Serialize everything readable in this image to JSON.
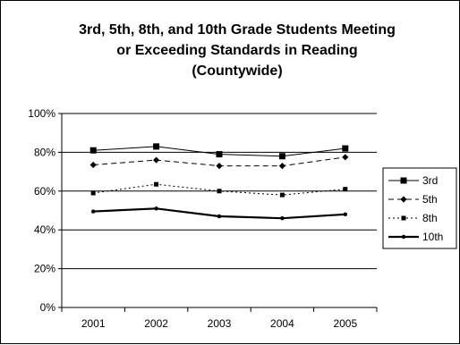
{
  "chart_data": {
    "type": "line",
    "title_lines": [
      "3rd, 5th, 8th, and 10th Grade Students Meeting",
      "or Exceeding Standards in Reading",
      "(Countywide)"
    ],
    "xlabel": "",
    "ylabel": "",
    "categories": [
      "2001",
      "2002",
      "2003",
      "2004",
      "2005"
    ],
    "y_ticks": [
      "0%",
      "20%",
      "40%",
      "60%",
      "80%",
      "100%"
    ],
    "ylim": [
      0,
      100
    ],
    "grid": true,
    "legend_position": "right",
    "series": [
      {
        "name": "3rd",
        "values": [
          81,
          83,
          79,
          78,
          82
        ],
        "line_style": "solid",
        "marker": "square",
        "color": "#000000"
      },
      {
        "name": "5th",
        "values": [
          73.5,
          76,
          73,
          73,
          77.5
        ],
        "line_style": "dashed",
        "marker": "diamond",
        "color": "#000000"
      },
      {
        "name": "8th",
        "values": [
          59,
          63.5,
          60,
          58,
          61
        ],
        "line_style": "dotted",
        "marker": "square",
        "color": "#000000"
      },
      {
        "name": "10th",
        "values": [
          49.5,
          51,
          47,
          46,
          48
        ],
        "line_style": "solid-thick",
        "marker": "dot",
        "color": "#000000"
      }
    ]
  }
}
